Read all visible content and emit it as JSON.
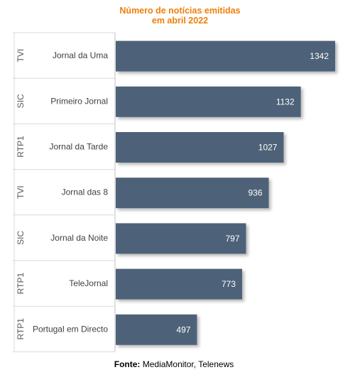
{
  "chart_data": {
    "type": "bar",
    "orientation": "horizontal",
    "title_line1": "Número de notícias emitidas",
    "title_line2": "em abril 2022",
    "groups": [
      "TVI",
      "SIC",
      "RTP1",
      "TVI",
      "SIC",
      "RTP1",
      "RTP1"
    ],
    "categories": [
      "Jornal da Uma",
      "Primeiro Jornal",
      "Jornal da Tarde",
      "Jornal das 8",
      "Jornal da Noite",
      "TeleJornal",
      "Portugal em Directo"
    ],
    "values": [
      1342,
      1132,
      1027,
      936,
      797,
      773,
      497
    ],
    "xlim": [
      0,
      1400
    ],
    "grid": false,
    "bar_color": "#4E6278",
    "label_color": "#ffffff"
  },
  "source": {
    "label": "Fonte:",
    "text": "MediaMonitor, Telenews"
  }
}
